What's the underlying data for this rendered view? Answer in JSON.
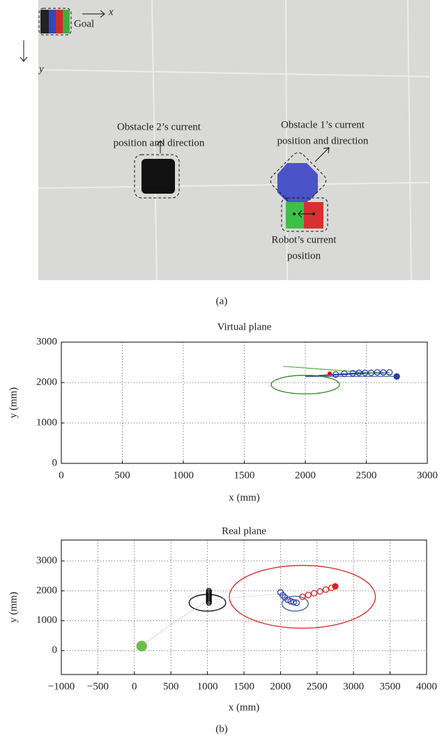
{
  "photo": {
    "goal": "Goal",
    "x_axis": "x",
    "y_axis": "y",
    "obstacle2": [
      "Obstacle 2’s current",
      "position and direction"
    ],
    "obstacle1": [
      "Obstacle 1’s current",
      "position and direction"
    ],
    "robot": [
      "Robot’s current",
      "position"
    ]
  },
  "caption_a": "(a)",
  "chart_data": [
    {
      "type": "scatter",
      "title": "Virtual plane",
      "xlabel": "x (mm)",
      "ylabel": "y (mm)",
      "xlim": [
        0,
        3000
      ],
      "xticks": [
        0,
        500,
        1000,
        1500,
        2000,
        2500,
        3000
      ],
      "ylim": [
        0,
        3000
      ],
      "yticks": [
        0,
        1000,
        2000,
        3000
      ],
      "grid": true,
      "fans": [
        {
          "color": "#2b3fa0",
          "from": [
            2000,
            2150
          ],
          "x": [
            2250,
            2320,
            2390,
            2440,
            2490,
            2540,
            2590,
            2640,
            2690,
            2750
          ],
          "y": [
            2200,
            2220,
            2230,
            2240,
            2240,
            2240,
            2250,
            2250,
            2250,
            2150
          ]
        },
        {
          "color": "#5cb83a",
          "from": [
            1820,
            2400
          ],
          "x": [
            2500,
            2600,
            2700
          ],
          "y": [
            2250,
            2230,
            2200
          ]
        }
      ],
      "ellipses": [
        {
          "color": "#2e8b1e",
          "cx": 2000,
          "cy": 1950,
          "rx": 280,
          "ry": 230
        }
      ],
      "lines": [],
      "series": [
        {
          "color": "#2b3fa0",
          "filled": false,
          "size": 4,
          "x": [
            2250,
            2320,
            2390,
            2440,
            2490,
            2540,
            2590,
            2640,
            2690
          ],
          "y": [
            2200,
            2220,
            2230,
            2240,
            2240,
            2240,
            2250,
            2250,
            2250
          ]
        },
        {
          "color": "#2b3fa0",
          "filled": true,
          "size": 4,
          "x": [
            2750
          ],
          "y": [
            2150
          ]
        },
        {
          "color": "#d11",
          "filled": true,
          "size": 2.5,
          "x": [
            2200
          ],
          "y": [
            2220
          ]
        }
      ]
    },
    {
      "type": "scatter",
      "title": "Real plane",
      "xlabel": "x (mm)",
      "ylabel": "y (mm)",
      "xlim": [
        -1000,
        4000
      ],
      "xticks": [
        {
          "value": -1000,
          "label": "−1000"
        },
        {
          "value": -500,
          "label": "−500"
        },
        0,
        500,
        1000,
        1500,
        2000,
        2500,
        3000,
        3500,
        4000
      ],
      "ylim": [
        -800,
        3700
      ],
      "yticks": [
        0,
        1000,
        2000,
        3000
      ],
      "grid": true,
      "fans": [],
      "ellipses": [
        {
          "color": "#000000",
          "cx": 1000,
          "cy": 1600,
          "rx": 250,
          "ry": 280
        },
        {
          "color": "#2b5fb0",
          "cx": 2200,
          "cy": 1570,
          "rx": 180,
          "ry": 250
        },
        {
          "color": "#e02020",
          "cx": 2300,
          "cy": 1800,
          "rx": 1000,
          "ry": 1050
        }
      ],
      "lines": [
        {
          "color": "#e06060",
          "x": [
            100,
            400,
            700,
            1000
          ],
          "y": [
            150,
            700,
            1200,
            1650
          ]
        },
        {
          "color": "#aaaaaa",
          "x": [
            1100,
            1500,
            2000
          ],
          "y": [
            1700,
            1800,
            1900
          ]
        }
      ],
      "series": [
        {
          "color": "#6cc04a",
          "filled": true,
          "size": 7,
          "x": [
            100
          ],
          "y": [
            150
          ]
        },
        {
          "color": "#000000",
          "filled": false,
          "size": 3.5,
          "x": [
            1020,
            1020,
            1020,
            1020,
            1020,
            1020,
            1020,
            1020,
            1020
          ],
          "y": [
            1600,
            1650,
            1700,
            1750,
            1800,
            1850,
            1900,
            1950,
            2000
          ]
        },
        {
          "color": "#2b3fa0",
          "filled": false,
          "size": 4,
          "x": [
            2000,
            2030,
            2060,
            2100,
            2140,
            2180,
            2220
          ],
          "y": [
            1950,
            1850,
            1780,
            1700,
            1650,
            1620,
            1600
          ]
        },
        {
          "color": "#e02020",
          "filled": false,
          "size": 4,
          "x": [
            2300,
            2380,
            2460,
            2540,
            2620,
            2700
          ],
          "y": [
            1800,
            1860,
            1920,
            1980,
            2040,
            2100
          ]
        },
        {
          "color": "#e02020",
          "filled": true,
          "size": 4,
          "x": [
            2750
          ],
          "y": [
            2150
          ]
        }
      ]
    }
  ],
  "caption_b": "(b)"
}
